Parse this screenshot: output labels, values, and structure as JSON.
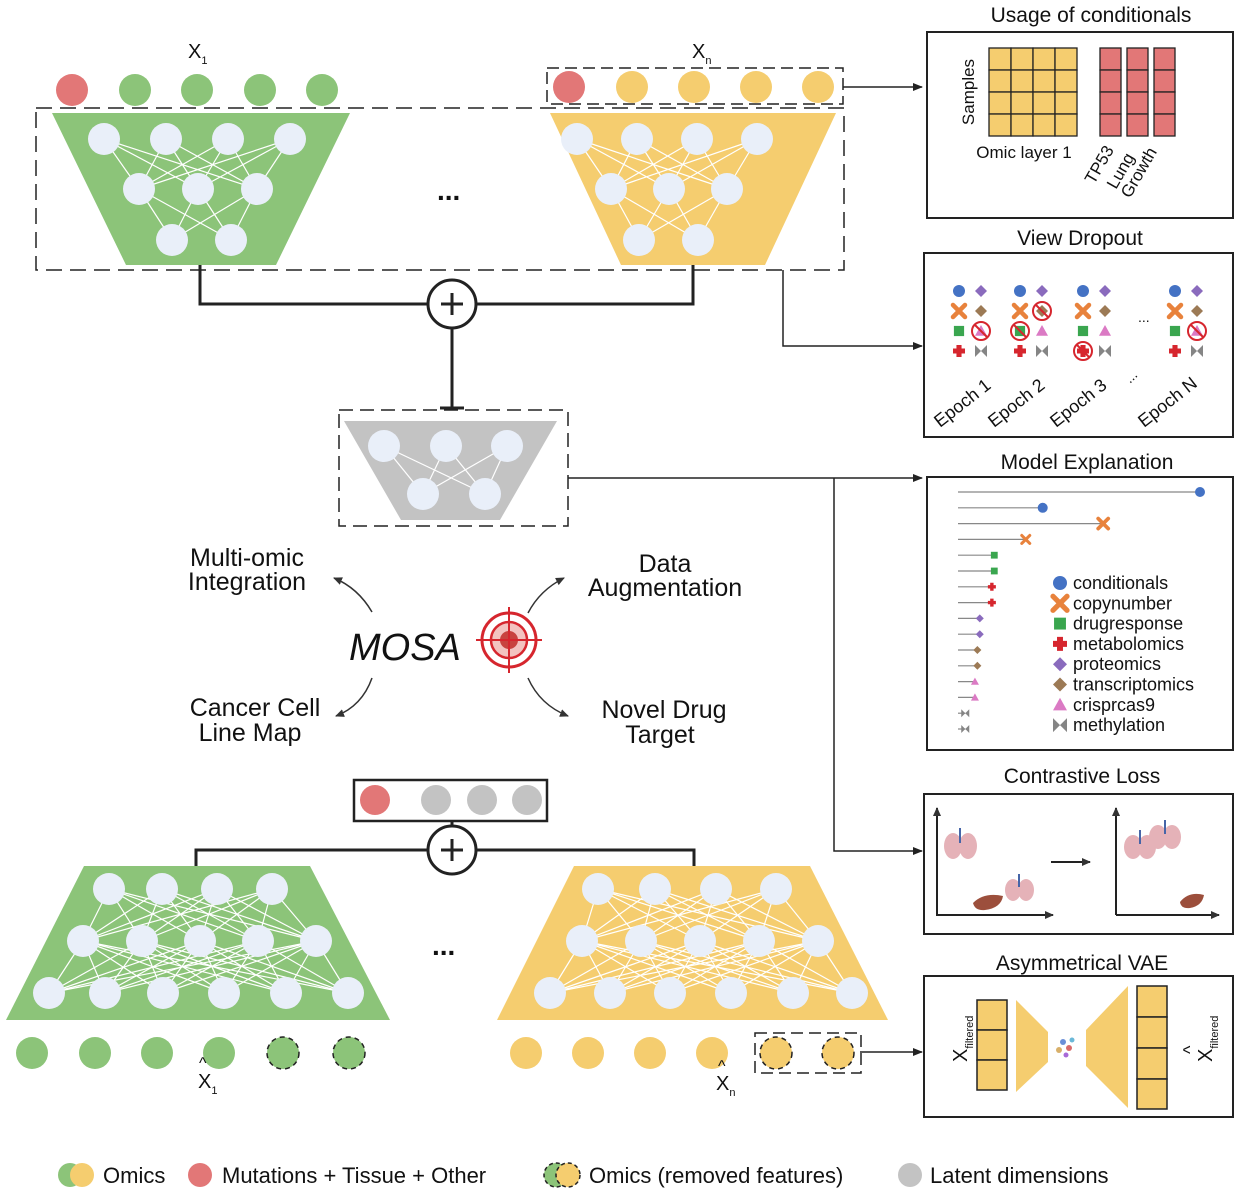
{
  "colors": {
    "green": "#8cc479",
    "yellow": "#f5cd6f",
    "red": "#e27777",
    "gray": "#c3c3c3",
    "node": "#e9eff9",
    "target_red": "#d6262e",
    "blue": "#4472c4",
    "orange": "#e8823c",
    "dgreen": "#3aa64f",
    "purple": "#8a6bbd",
    "brown": "#9c7a55",
    "pink": "#db7ac4",
    "mgray": "#858585"
  },
  "top": {
    "label_x1_main": "X",
    "label_x1_sub": "1",
    "label_xn_main": "X",
    "label_xn_sub": "n",
    "ellipsis": "..."
  },
  "bottom": {
    "label_x1_main": "X",
    "label_x1_sub": "1",
    "label_xn_main": "X",
    "label_xn_sub": "n",
    "ellipsis": "..."
  },
  "center": {
    "title": "MOSA",
    "multi_omic_1": "Multi-omic",
    "multi_omic_2": "Integration",
    "data_aug_1": "Data",
    "data_aug_2": "Augmentation",
    "cancer_1": "Cancer Cell",
    "cancer_2": "Line Map",
    "drug_1": "Novel Drug",
    "drug_2": "Target"
  },
  "panels": {
    "usage": {
      "title": "Usage of conditionals",
      "y_label": "Samples",
      "x_label": "Omic layer 1",
      "cond_labels": [
        "TP53",
        "Lung",
        "Growth"
      ]
    },
    "dropout": {
      "title": "View Dropout",
      "epochs": [
        "Epoch 1",
        "Epoch 2",
        "Epoch 3",
        "Epoch N"
      ],
      "dots": "...",
      "dots2": "..."
    },
    "explanation": {
      "title": "Model Explanation",
      "legend": [
        "conditionals",
        "copynumber",
        "drugresponse",
        "metabolomics",
        "proteomics",
        "transcriptomics",
        "crisprcas9",
        "methylation"
      ],
      "bars": [
        {
          "layer": "conditionals",
          "value": 1.0
        },
        {
          "layer": "conditionals",
          "value": 0.35
        },
        {
          "layer": "copynumber",
          "value": 0.6
        },
        {
          "layer": "copynumber",
          "value": 0.28
        },
        {
          "layer": "drugresponse",
          "value": 0.15
        },
        {
          "layer": "drugresponse",
          "value": 0.15
        },
        {
          "layer": "metabolomics",
          "value": 0.14
        },
        {
          "layer": "metabolomics",
          "value": 0.14
        },
        {
          "layer": "proteomics",
          "value": 0.09
        },
        {
          "layer": "proteomics",
          "value": 0.09
        },
        {
          "layer": "transcriptomics",
          "value": 0.08
        },
        {
          "layer": "transcriptomics",
          "value": 0.08
        },
        {
          "layer": "crisprcas9",
          "value": 0.07
        },
        {
          "layer": "crisprcas9",
          "value": 0.07
        },
        {
          "layer": "methylation",
          "value": 0.03
        },
        {
          "layer": "methylation",
          "value": 0.03
        }
      ]
    },
    "contrastive": {
      "title": "Contrastive Loss"
    },
    "vae": {
      "title": "Asymmetrical VAE",
      "left_main": "X",
      "left_sub": "filtered",
      "right_main": "X",
      "right_hat": "^",
      "right_sub": "filtered"
    }
  },
  "legend": {
    "omics": "Omics",
    "mutations": "Mutations + Tissue + Other",
    "removed": "Omics (removed features)",
    "latent": "Latent dimensions"
  }
}
